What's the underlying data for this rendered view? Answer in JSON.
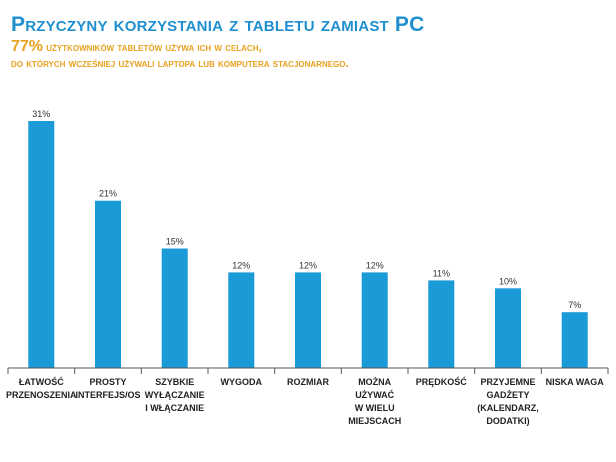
{
  "header": {
    "title": "Przyczyny korzystania z tabletu zamiast PC",
    "subtitle_lead": "77%",
    "subtitle_line1_rest": " użytkowników tabletów używa ich w celach,",
    "subtitle_line2": "do których wcześniej używali laptopa lub komputera stacjonarnego."
  },
  "chart_data": {
    "type": "bar",
    "title": "Przyczyny korzystania z tabletu zamiast PC",
    "xlabel": "",
    "ylabel": "",
    "ylim": [
      0,
      31
    ],
    "grid": false,
    "categories": [
      [
        "ŁATWOŚĆ",
        "PRZENOSZENIA"
      ],
      [
        "PROSTY",
        "INTERFEJS/OS"
      ],
      [
        "SZYBKIE",
        "WYŁĄCZANIE",
        "I WŁĄCZANIE"
      ],
      [
        "WYGODA"
      ],
      [
        "ROZMIAR"
      ],
      [
        "MOŻNA",
        "UŻYWAĆ",
        "W WIELU",
        "MIEJSCACH"
      ],
      [
        "PRĘDKOŚĆ"
      ],
      [
        "PRZYJEMNE",
        "GADŻETY",
        "(KALENDARZ,",
        "DODATKI)"
      ],
      [
        "NISKA WAGA"
      ]
    ],
    "values": [
      31,
      21,
      15,
      12,
      12,
      12,
      11,
      10,
      7
    ],
    "value_labels": [
      "31%",
      "21%",
      "15%",
      "12%",
      "12%",
      "12%",
      "11%",
      "10%",
      "7%"
    ],
    "bar_color": "#1b9ad8"
  },
  "colors": {
    "title": "#1f8fd0",
    "subtitle": "#e8a21f",
    "axis": "#555555"
  }
}
